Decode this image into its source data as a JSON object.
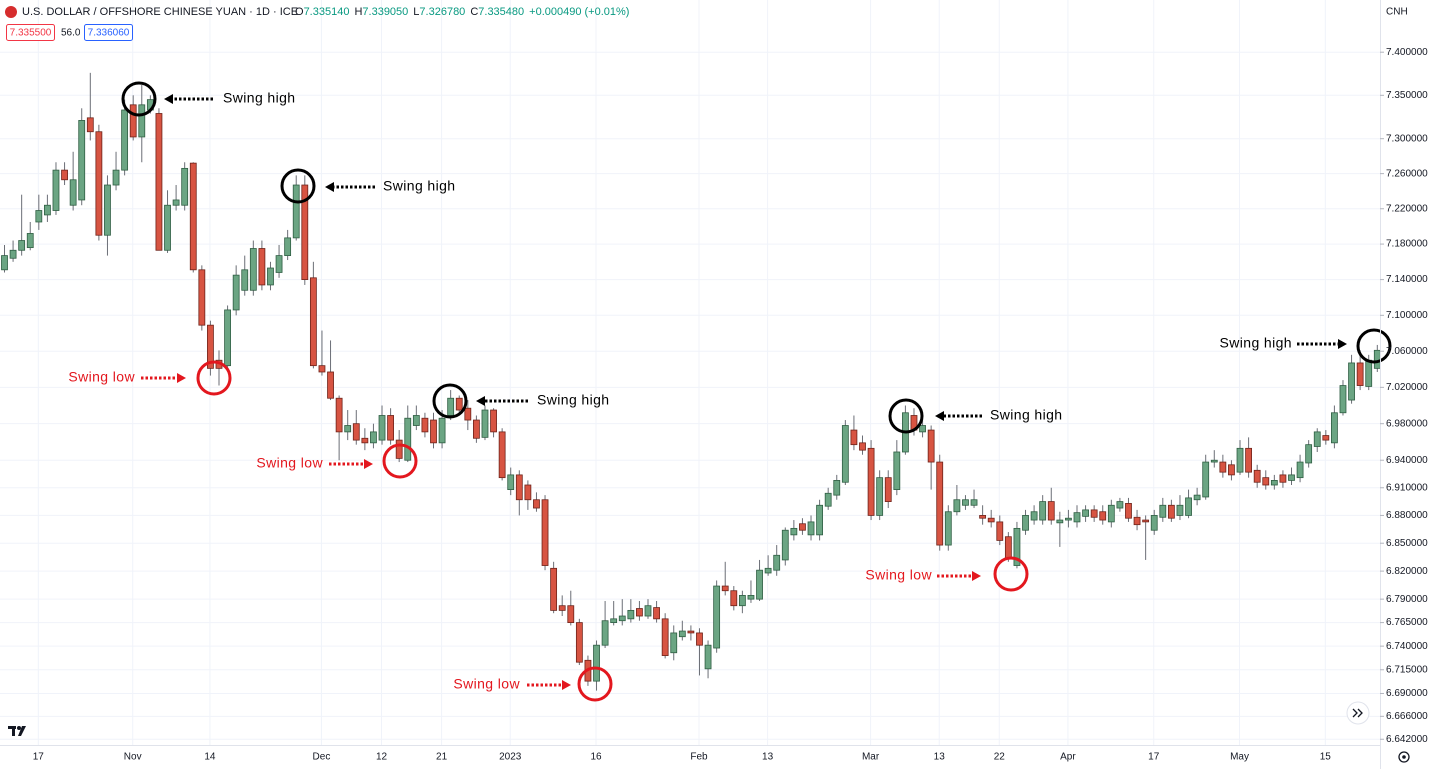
{
  "header": {
    "symbol": "U.S. DOLLAR / OFFSHORE CHINESE YUAN · 1D · ICE",
    "ohlc": [
      {
        "key": "O",
        "value": "7.335140"
      },
      {
        "key": "H",
        "value": "7.339050"
      },
      {
        "key": "L",
        "value": "7.326780"
      },
      {
        "key": "C",
        "value": "7.335480"
      }
    ],
    "change": "+0.000490 (+0.01%)",
    "bid": "7.335500",
    "spread": "56.0",
    "ask": "7.336060",
    "currency": "CNH"
  },
  "chart_data": {
    "type": "candlestick",
    "log_scale": true,
    "grid": true,
    "up_color": "#6ba583",
    "down_color": "#d75442",
    "categories": [
      null,
      null,
      null,
      null,
      "17",
      null,
      null,
      null,
      null,
      null,
      null,
      null,
      null,
      null,
      null,
      "Nov",
      null,
      null,
      null,
      null,
      null,
      null,
      null,
      null,
      "14",
      null,
      null,
      null,
      null,
      null,
      null,
      null,
      null,
      null,
      null,
      null,
      null,
      "Dec",
      null,
      null,
      null,
      null,
      null,
      null,
      "12",
      null,
      null,
      null,
      null,
      null,
      null,
      "21",
      null,
      null,
      null,
      null,
      null,
      null,
      null,
      "2023",
      null,
      null,
      null,
      null,
      null,
      null,
      null,
      null,
      null,
      "16",
      null,
      null,
      null,
      null,
      null,
      null,
      null,
      null,
      null,
      null,
      null,
      "Feb",
      null,
      null,
      null,
      null,
      null,
      null,
      null,
      "13",
      null,
      null,
      null,
      null,
      null,
      null,
      null,
      null,
      null,
      null,
      null,
      "Mar",
      null,
      null,
      null,
      null,
      null,
      null,
      null,
      "13",
      null,
      null,
      null,
      null,
      null,
      null,
      "22",
      null,
      null,
      null,
      null,
      null,
      null,
      null,
      "Apr",
      null,
      null,
      null,
      null,
      null,
      null,
      null,
      null,
      null,
      "17",
      null,
      null,
      null,
      null,
      null,
      null,
      null,
      null,
      null,
      "May",
      null,
      null,
      null,
      null,
      null,
      null,
      null,
      null,
      null,
      "15",
      null,
      null,
      null,
      null,
      null,
      null
    ],
    "open": [
      7.151,
      7.164,
      7.173,
      7.176,
      7.205,
      7.213,
      7.218,
      7.264,
      7.224,
      7.23,
      7.324,
      7.308,
      7.19,
      7.247,
      7.264,
      7.339,
      7.302,
      7.333,
      7.329,
      7.173,
      7.224,
      7.224,
      7.272,
      7.151,
      7.089,
      7.05,
      7.044,
      7.106,
      7.128,
      7.128,
      7.175,
      7.134,
      7.148,
      7.167,
      7.187,
      7.247,
      7.142,
      7.044,
      7.037,
      7.008,
      6.971,
      6.98,
      6.964,
      6.959,
      6.962,
      6.989,
      6.962,
      6.94,
      6.978,
      6.986,
      6.984,
      6.959,
      6.989,
      7.008,
      6.997,
      6.984,
      6.965,
      6.995,
      6.971,
      6.908,
      6.924,
      6.913,
      6.897,
      6.897,
      6.823,
      6.783,
      6.783,
      6.765,
      6.725,
      6.703,
      6.741,
      6.765,
      6.767,
      6.769,
      6.78,
      6.772,
      6.781,
      6.769,
      6.733,
      6.75,
      6.756,
      6.754,
      6.716,
      6.738,
      6.804,
      6.799,
      6.783,
      6.79,
      6.79,
      6.818,
      6.821,
      6.832,
      6.859,
      6.871,
      6.859,
      6.859,
      6.89,
      6.902,
      6.916,
      6.973,
      6.959,
      6.953,
      6.88,
      6.921,
      6.908,
      6.949,
      6.989,
      6.971,
      6.973,
      6.938,
      6.848,
      6.884,
      6.891,
      6.891,
      6.88,
      6.877,
      6.873,
      6.857,
      6.826,
      6.864,
      6.875,
      6.875,
      6.895,
      6.872,
      6.875,
      6.873,
      6.879,
      6.886,
      6.884,
      6.873,
      6.888,
      6.893,
      6.878,
      6.875,
      6.864,
      6.878,
      6.891,
      6.88,
      6.88,
      6.897,
      6.9,
      6.938,
      6.938,
      6.935,
      6.927,
      6.953,
      6.929,
      6.921,
      6.913,
      6.924,
      6.918,
      6.921,
      6.937,
      6.955,
      6.967,
      6.959,
      6.992,
      7.006,
      7.047,
      7.021,
      7.041
    ],
    "high": [
      7.179,
      7.184,
      7.236,
      7.205,
      7.236,
      7.236,
      7.273,
      7.273,
      7.285,
      7.335,
      7.376,
      7.316,
      7.258,
      7.285,
      7.345,
      7.35,
      7.362,
      7.35,
      7.335,
      7.241,
      7.247,
      7.273,
      7.273,
      7.156,
      7.094,
      7.061,
      7.111,
      7.156,
      7.167,
      7.184,
      7.184,
      7.16,
      7.179,
      7.196,
      7.258,
      7.258,
      7.16,
      7.083,
      7.072,
      7.011,
      6.995,
      6.995,
      6.975,
      6.98,
      7.0,
      6.997,
      6.973,
      7.0,
      7.0,
      6.992,
      6.992,
      6.995,
      7.017,
      7.011,
      7.006,
      6.989,
      7.0,
      6.997,
      6.975,
      6.932,
      6.929,
      6.918,
      6.905,
      6.902,
      6.83,
      6.794,
      6.799,
      6.769,
      6.73,
      6.746,
      6.788,
      6.788,
      6.79,
      6.79,
      6.788,
      6.79,
      6.788,
      6.775,
      6.762,
      6.767,
      6.762,
      6.759,
      6.746,
      6.81,
      6.83,
      6.804,
      6.799,
      6.81,
      6.832,
      6.837,
      6.848,
      6.867,
      6.875,
      6.877,
      6.88,
      6.897,
      6.91,
      6.924,
      6.984,
      6.989,
      6.967,
      6.962,
      6.929,
      6.929,
      6.962,
      7.0,
      6.997,
      6.984,
      6.978,
      6.946,
      6.891,
      6.913,
      6.902,
      6.908,
      6.891,
      6.886,
      6.88,
      6.862,
      6.873,
      6.886,
      6.891,
      6.902,
      6.91,
      6.884,
      6.886,
      6.891,
      6.891,
      6.891,
      6.891,
      6.897,
      6.899,
      6.899,
      6.886,
      6.88,
      6.886,
      6.899,
      6.897,
      6.902,
      6.908,
      6.91,
      6.946,
      6.951,
      6.946,
      6.94,
      6.962,
      6.965,
      6.935,
      6.929,
      6.924,
      6.929,
      6.932,
      6.946,
      6.962,
      6.975,
      6.973,
      7.0,
      7.028,
      7.056,
      7.061,
      7.056,
      7.067
    ],
    "low": [
      7.148,
      7.16,
      7.167,
      7.173,
      7.196,
      7.205,
      7.213,
      7.247,
      7.218,
      7.224,
      7.298,
      7.184,
      7.167,
      7.241,
      7.258,
      7.298,
      7.273,
      7.329,
      7.173,
      7.17,
      7.218,
      7.218,
      7.148,
      7.083,
      7.033,
      7.022,
      7.041,
      7.1,
      7.122,
      7.122,
      7.128,
      7.128,
      7.142,
      7.162,
      7.184,
      7.134,
      7.041,
      7.033,
      7.006,
      6.94,
      6.962,
      6.957,
      6.951,
      6.953,
      6.957,
      6.957,
      6.938,
      6.938,
      6.973,
      6.965,
      6.953,
      6.953,
      6.984,
      6.989,
      6.973,
      6.959,
      6.962,
      6.965,
      6.918,
      6.902,
      6.88,
      6.886,
      6.884,
      6.821,
      6.775,
      6.772,
      6.762,
      6.72,
      6.698,
      6.693,
      6.738,
      6.762,
      6.762,
      6.765,
      6.767,
      6.769,
      6.765,
      6.727,
      6.725,
      6.746,
      6.746,
      6.709,
      6.706,
      6.733,
      6.794,
      6.778,
      6.775,
      6.786,
      6.788,
      6.815,
      6.815,
      6.826,
      6.853,
      6.859,
      6.853,
      6.853,
      6.886,
      6.897,
      6.913,
      6.951,
      6.946,
      6.875,
      6.875,
      6.888,
      6.902,
      6.946,
      6.967,
      6.965,
      6.908,
      6.842,
      6.842,
      6.88,
      6.886,
      6.888,
      6.87,
      6.867,
      6.848,
      6.83,
      6.823,
      6.859,
      6.87,
      6.87,
      6.87,
      6.846,
      6.867,
      6.867,
      6.873,
      6.873,
      6.87,
      6.867,
      6.884,
      6.873,
      6.864,
      6.832,
      6.859,
      6.873,
      6.873,
      6.875,
      6.877,
      6.891,
      6.897,
      6.932,
      6.921,
      6.918,
      6.924,
      6.921,
      6.91,
      6.908,
      6.908,
      6.91,
      6.913,
      6.916,
      6.932,
      6.949,
      6.957,
      6.953,
      6.989,
      7.002,
      7.017,
      7.017,
      7.037
    ],
    "close": [
      7.167,
      7.173,
      7.184,
      7.192,
      7.218,
      7.224,
      7.264,
      7.253,
      7.253,
      7.321,
      7.308,
      7.19,
      7.247,
      7.264,
      7.333,
      7.302,
      7.339,
      7.345,
      7.173,
      7.224,
      7.23,
      7.266,
      7.151,
      7.089,
      7.041,
      7.041,
      7.106,
      7.145,
      7.151,
      7.175,
      7.134,
      7.153,
      7.167,
      7.187,
      7.247,
      7.14,
      7.044,
      7.037,
      7.008,
      6.971,
      6.978,
      6.962,
      6.959,
      6.971,
      6.989,
      6.962,
      6.942,
      6.986,
      6.989,
      6.971,
      6.959,
      6.986,
      7.008,
      6.995,
      6.984,
      6.964,
      6.995,
      6.971,
      6.921,
      6.924,
      6.897,
      6.897,
      6.888,
      6.826,
      6.778,
      6.778,
      6.765,
      6.723,
      6.703,
      6.741,
      6.767,
      6.769,
      6.772,
      6.778,
      6.772,
      6.783,
      6.769,
      6.73,
      6.754,
      6.756,
      6.754,
      6.741,
      6.741,
      6.804,
      6.799,
      6.783,
      6.794,
      6.794,
      6.821,
      6.823,
      6.837,
      6.864,
      6.866,
      6.864,
      6.873,
      6.891,
      6.904,
      6.918,
      6.978,
      6.957,
      6.951,
      6.88,
      6.921,
      6.895,
      6.949,
      6.992,
      6.973,
      6.978,
      6.938,
      6.848,
      6.884,
      6.897,
      6.897,
      6.897,
      6.877,
      6.873,
      6.853,
      6.834,
      6.866,
      6.88,
      6.884,
      6.895,
      6.875,
      6.875,
      6.877,
      6.883,
      6.886,
      6.878,
      6.875,
      6.891,
      6.895,
      6.877,
      6.87,
      6.873,
      6.88,
      6.891,
      6.877,
      6.891,
      6.899,
      6.902,
      6.938,
      6.94,
      6.927,
      6.924,
      6.953,
      6.927,
      6.916,
      6.913,
      6.918,
      6.916,
      6.924,
      6.938,
      6.957,
      6.971,
      6.962,
      6.992,
      7.022,
      7.047,
      7.022,
      7.05,
      7.061
    ],
    "ylim": [
      6.636,
      7.461
    ],
    "yticks": [
      {
        "value": 7.4,
        "label": "7.400000"
      },
      {
        "value": 7.35,
        "label": "7.350000"
      },
      {
        "value": 7.3,
        "label": "7.300000"
      },
      {
        "value": 7.26,
        "label": "7.260000"
      },
      {
        "value": 7.22,
        "label": "7.220000"
      },
      {
        "value": 7.18,
        "label": "7.180000"
      },
      {
        "value": 7.14,
        "label": "7.140000"
      },
      {
        "value": 7.1,
        "label": "7.100000"
      },
      {
        "value": 7.06,
        "label": "7.060000"
      },
      {
        "value": 7.02,
        "label": "7.020000"
      },
      {
        "value": 6.98,
        "label": "6.980000"
      },
      {
        "value": 6.94,
        "label": "6.940000"
      },
      {
        "value": 6.91,
        "label": "6.910000"
      },
      {
        "value": 6.88,
        "label": "6.880000"
      },
      {
        "value": 6.85,
        "label": "6.850000"
      },
      {
        "value": 6.82,
        "label": "6.820000"
      },
      {
        "value": 6.79,
        "label": "6.790000"
      },
      {
        "value": 6.765,
        "label": "6.765000"
      },
      {
        "value": 6.74,
        "label": "6.740000"
      },
      {
        "value": 6.715,
        "label": "6.715000"
      },
      {
        "value": 6.69,
        "label": "6.690000"
      },
      {
        "value": 6.666,
        "label": "6.666000"
      },
      {
        "value": 6.642,
        "label": "6.642000"
      }
    ],
    "annotations": [
      {
        "text": "Swing high",
        "color": "#000000"
      },
      {
        "text": "Swing high",
        "color": "#000000"
      },
      {
        "text": "Swing low",
        "color": "#e3171e"
      },
      {
        "text": "Swing high",
        "color": "#000000"
      },
      {
        "text": "Swing low",
        "color": "#e3171e"
      },
      {
        "text": "Swing low",
        "color": "#e3171e"
      },
      {
        "text": "Swing high",
        "color": "#000000"
      },
      {
        "text": "Swing low",
        "color": "#e3171e"
      },
      {
        "text": "Swing high",
        "color": "#000000"
      }
    ]
  }
}
